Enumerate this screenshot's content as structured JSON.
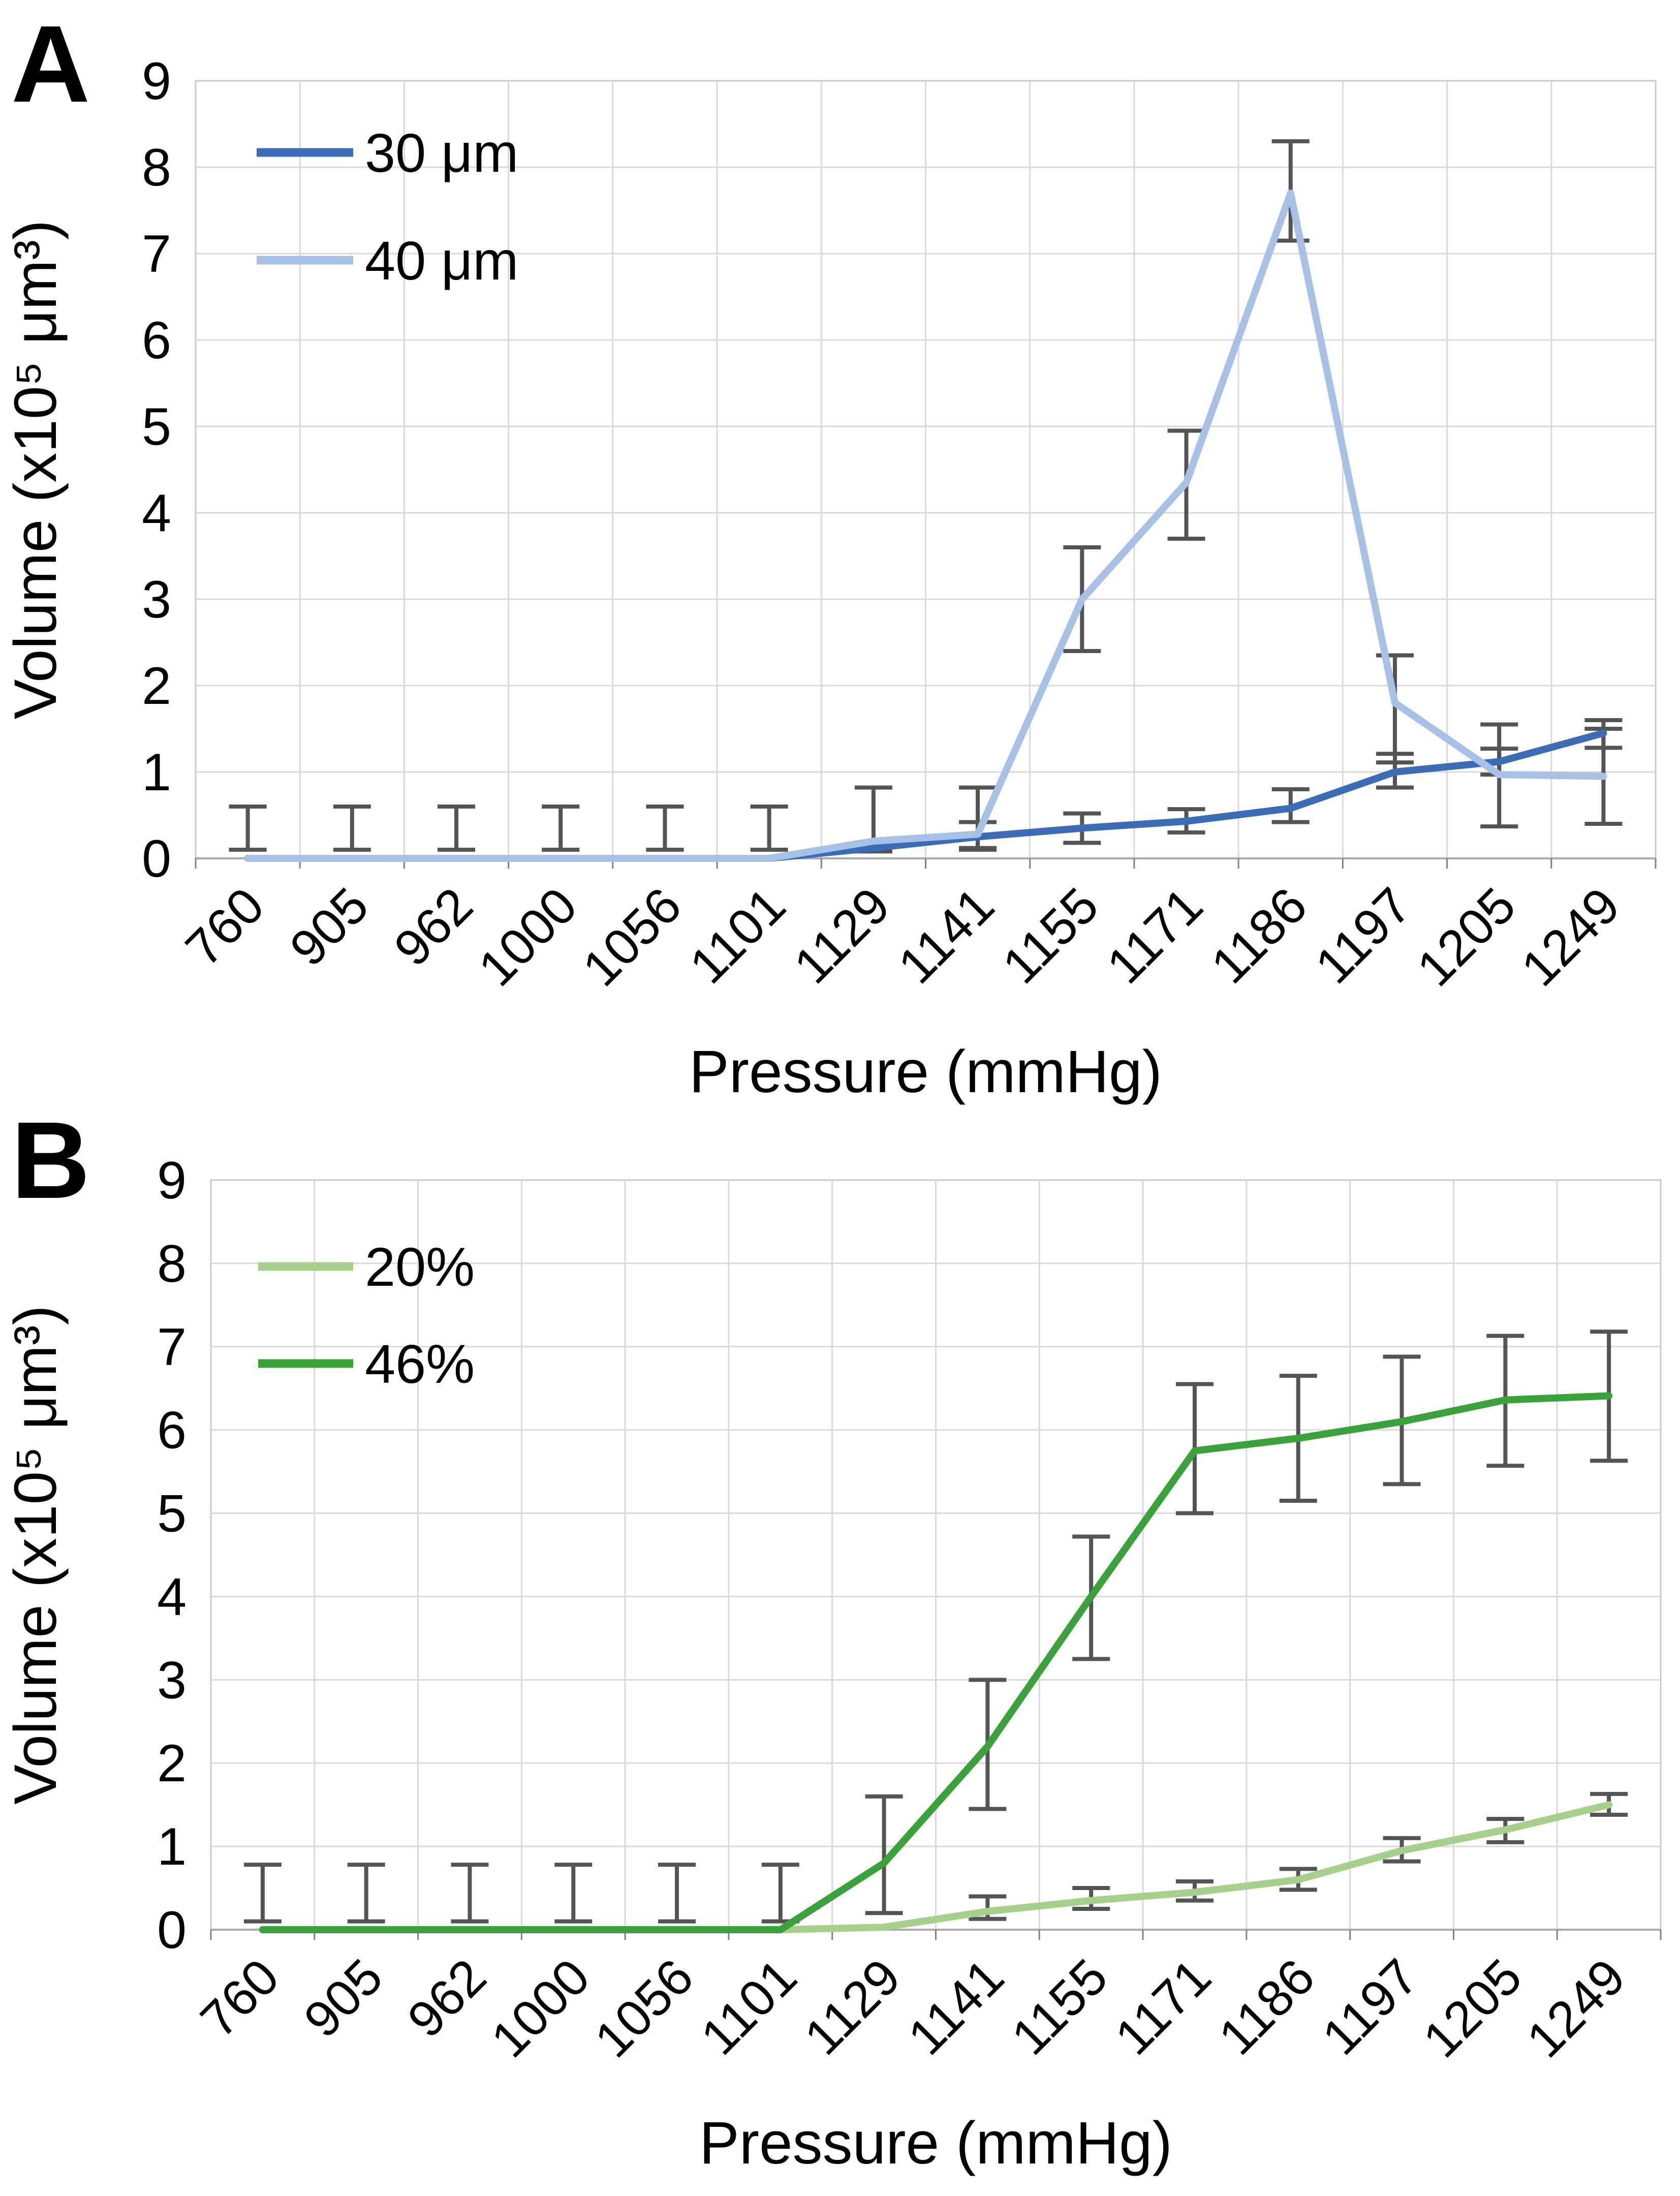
{
  "figure": {
    "background": "#FFFFFF",
    "gridline_color": "#D9D9D9",
    "axis_line_color": "#ABABAB",
    "plot_border_color": "#C9C9C9",
    "error_bar_color": "#545454",
    "tick_mark_color": "#808080"
  },
  "chart_data": [
    {
      "type": "line",
      "panel": "A",
      "xlabel": "Pressure (mmHg)",
      "ylabel": "Volume (x10⁵ μm³)",
      "ylim": [
        0,
        9
      ],
      "ytick_step": 1,
      "ytick_labels": [
        "0",
        "1",
        "2",
        "3",
        "4",
        "5",
        "6",
        "7",
        "8",
        "9"
      ],
      "grid": true,
      "legend_position": "top-left-inside",
      "categories": [
        "760",
        "905",
        "962",
        "1000",
        "1056",
        "1101",
        "1129",
        "1141",
        "1155",
        "1171",
        "1186",
        "1197",
        "1205",
        "1249"
      ],
      "series": [
        {
          "name": "30 μm",
          "color": "#3C6CB5",
          "values": [
            0,
            0,
            0,
            0,
            0,
            0,
            0.12,
            0.25,
            0.35,
            0.43,
            0.58,
            1.0,
            1.12,
            1.45
          ],
          "err_lo": [
            0.1,
            0.1,
            0.1,
            0.1,
            0.1,
            0.1,
            0.08,
            0.1,
            0.18,
            0.3,
            0.42,
            0.82,
            0.97,
            1.28
          ],
          "err_hi": [
            0.6,
            0.6,
            0.6,
            0.6,
            0.6,
            0.6,
            0.82,
            0.42,
            0.52,
            0.57,
            0.8,
            1.21,
            1.27,
            1.6
          ]
        },
        {
          "name": "40 μm",
          "color": "#A7C0E6",
          "values": [
            0,
            0,
            0,
            0,
            0,
            0,
            0.2,
            0.28,
            3.0,
            4.35,
            7.7,
            1.8,
            0.97,
            0.95
          ],
          "err_lo": [
            null,
            null,
            null,
            null,
            null,
            null,
            null,
            0.12,
            2.4,
            3.7,
            7.15,
            1.11,
            0.37,
            0.4
          ],
          "err_hi": [
            null,
            null,
            null,
            null,
            null,
            null,
            null,
            0.82,
            3.6,
            4.95,
            8.3,
            2.35,
            1.55,
            1.5
          ]
        }
      ]
    },
    {
      "type": "line",
      "panel": "B",
      "xlabel": "Pressure (mmHg)",
      "ylabel": "Volume (x10⁵ μm³)",
      "ylim": [
        0,
        9
      ],
      "ytick_step": 1,
      "ytick_labels": [
        "0",
        "1",
        "2",
        "3",
        "4",
        "5",
        "6",
        "7",
        "8",
        "9"
      ],
      "grid": true,
      "legend_position": "top-left-inside",
      "categories": [
        "760",
        "905",
        "962",
        "1000",
        "1056",
        "1101",
        "1129",
        "1141",
        "1155",
        "1171",
        "1186",
        "1197",
        "1205",
        "1249"
      ],
      "series": [
        {
          "name": "20%",
          "color": "#A8D08D",
          "values": [
            0,
            0,
            0,
            0,
            0,
            0,
            0.03,
            0.22,
            0.35,
            0.45,
            0.6,
            0.95,
            1.2,
            1.5
          ],
          "err_lo": [
            0.1,
            0.1,
            0.1,
            0.1,
            0.1,
            0.1,
            null,
            0.13,
            0.25,
            0.35,
            0.48,
            0.82,
            1.05,
            1.38
          ],
          "err_hi": [
            0.78,
            0.78,
            0.78,
            0.78,
            0.78,
            0.78,
            null,
            0.4,
            0.5,
            0.58,
            0.73,
            1.1,
            1.33,
            1.63
          ]
        },
        {
          "name": "46%",
          "color": "#3AA23A",
          "values": [
            0,
            0,
            0,
            0,
            0,
            0,
            0.8,
            2.2,
            4.0,
            5.75,
            5.9,
            6.1,
            6.36,
            6.41
          ],
          "err_lo": [
            null,
            null,
            null,
            null,
            null,
            null,
            0.2,
            1.45,
            3.25,
            5.0,
            5.15,
            5.35,
            5.57,
            5.63
          ],
          "err_hi": [
            null,
            null,
            null,
            null,
            null,
            null,
            1.6,
            3.0,
            4.72,
            6.55,
            6.65,
            6.88,
            7.13,
            7.18
          ]
        }
      ]
    }
  ]
}
